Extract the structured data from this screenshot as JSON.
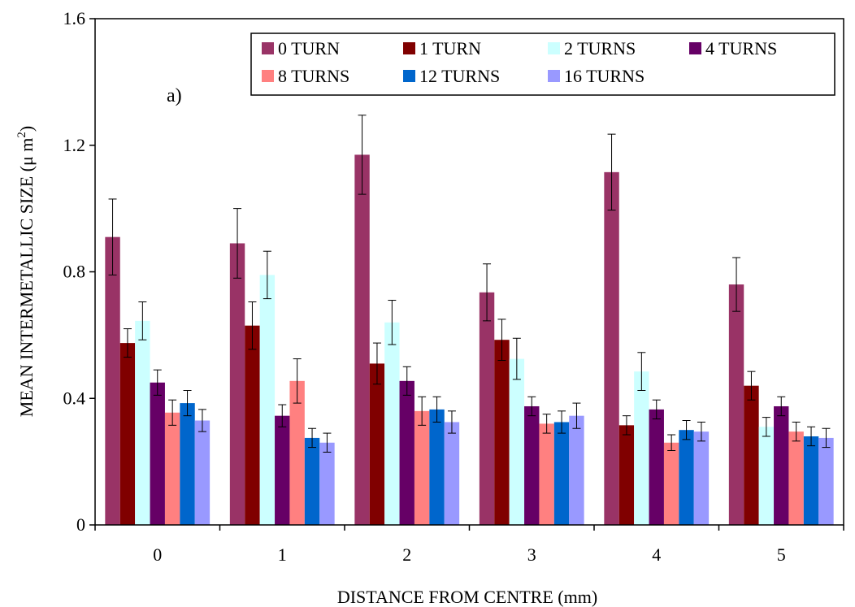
{
  "chart_data": {
    "type": "bar",
    "xlabel": "DISTANCE FROM CENTRE (mm)",
    "ylabel": "MEAN INTERMETALLIC SIZE (μ m",
    "ylabel_sup": "2",
    "ylabel_close": ")",
    "annotation": "a)",
    "ylim": [
      0,
      1.6
    ],
    "yticks": [
      "0",
      "0.4",
      "0.8",
      "1.2",
      "1.6"
    ],
    "yticks_values": [
      0,
      0.4,
      0.8,
      1.2,
      1.6
    ],
    "categories": [
      "0",
      "1",
      "2",
      "3",
      "4",
      "5"
    ],
    "grid": false,
    "legend_position": "top-right",
    "series": [
      {
        "name": "0 TURN",
        "color": "#993366",
        "values": [
          0.91,
          0.89,
          1.17,
          0.735,
          1.115,
          0.76
        ],
        "errors": [
          0.12,
          0.11,
          0.125,
          0.09,
          0.12,
          0.085
        ]
      },
      {
        "name": "1 TURN",
        "color": "#800000",
        "values": [
          0.575,
          0.63,
          0.51,
          0.585,
          0.315,
          0.44
        ],
        "errors": [
          0.045,
          0.075,
          0.065,
          0.065,
          0.03,
          0.045
        ]
      },
      {
        "name": "2 TURNS",
        "color": "#ccffff",
        "values": [
          0.645,
          0.79,
          0.64,
          0.525,
          0.485,
          0.31
        ],
        "errors": [
          0.06,
          0.075,
          0.07,
          0.065,
          0.06,
          0.03
        ]
      },
      {
        "name": "4 TURNS",
        "color": "#660066",
        "values": [
          0.45,
          0.345,
          0.455,
          0.375,
          0.365,
          0.375
        ],
        "errors": [
          0.04,
          0.035,
          0.045,
          0.03,
          0.03,
          0.03
        ]
      },
      {
        "name": "8 TURNS",
        "color": "#ff8080",
        "values": [
          0.355,
          0.455,
          0.36,
          0.32,
          0.26,
          0.295
        ],
        "errors": [
          0.04,
          0.07,
          0.045,
          0.03,
          0.025,
          0.03
        ]
      },
      {
        "name": "12 TURNS",
        "color": "#0066cc",
        "values": [
          0.385,
          0.275,
          0.365,
          0.325,
          0.3,
          0.28
        ],
        "errors": [
          0.04,
          0.03,
          0.04,
          0.035,
          0.03,
          0.03
        ]
      },
      {
        "name": "16 TURNS",
        "color": "#9999ff",
        "values": [
          0.33,
          0.26,
          0.325,
          0.345,
          0.295,
          0.275
        ],
        "errors": [
          0.035,
          0.03,
          0.035,
          0.04,
          0.03,
          0.03
        ]
      }
    ]
  }
}
